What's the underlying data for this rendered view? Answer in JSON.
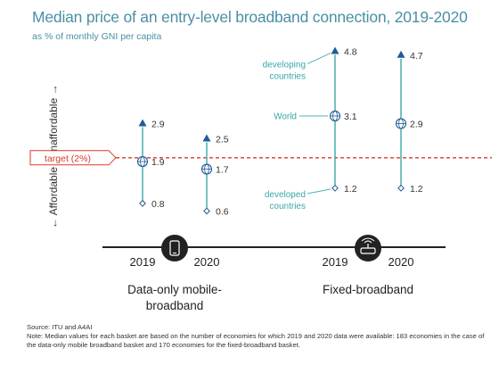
{
  "title": "Median price of an entry-level broadband connection, 2019-2020",
  "subtitle": "as % of monthly GNI per capita",
  "colors": {
    "title": "#4a8fa6",
    "stem": "#39a8a8",
    "marker": "#1f5c94",
    "target": "#d93a2b",
    "axis": "#222222"
  },
  "icons": [
    "smartphone-icon",
    "router-icon",
    "globe-icon",
    "diamond-icon",
    "triangle-icon"
  ],
  "chart_data": {
    "type": "range",
    "ylabel_top": "Unaffordable",
    "ylabel_bottom": "Affordable",
    "target": {
      "label": "target (2%)",
      "value": 2
    },
    "groups": [
      {
        "label": "Data-only mobile-broadband",
        "label_lines": [
          "Data-only mobile-",
          "broadband"
        ],
        "icon": "smartphone-icon",
        "points": [
          {
            "year": "2019",
            "developing": 2.9,
            "world": 1.9,
            "developed": 0.8
          },
          {
            "year": "2020",
            "developing": 2.5,
            "world": 1.7,
            "developed": 0.6
          }
        ]
      },
      {
        "label": "Fixed-broadband",
        "label_lines": [
          "Fixed-broadband"
        ],
        "icon": "router-icon",
        "points": [
          {
            "year": "2019",
            "developing": 4.8,
            "world": 3.1,
            "developed": 1.2
          },
          {
            "year": "2020",
            "developing": 4.7,
            "world": 2.9,
            "developed": 1.2
          }
        ]
      }
    ],
    "annotations": {
      "developing": [
        "developing",
        "countries"
      ],
      "world": "World",
      "developed": [
        "developed",
        "countries"
      ]
    }
  },
  "source": "Source: ITU and A4AI",
  "note": "Note: Median values for each basket are based on the number of economies for which 2019 and 2020 data were available: 183 economies in the case of the data-only mobile broadband basket and 170 economies for the fixed-broadband basket."
}
